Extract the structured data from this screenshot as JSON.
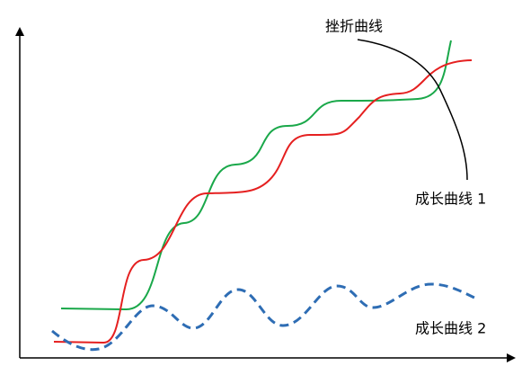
{
  "labels": {
    "frustration_curve": "挫折曲线",
    "growth_curve_1": "成长曲线 1",
    "growth_curve_2": "成长曲线 2"
  }
}
